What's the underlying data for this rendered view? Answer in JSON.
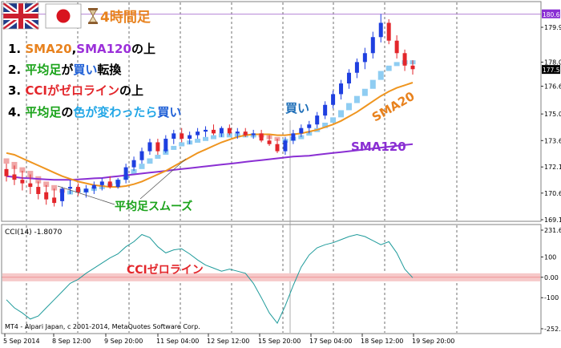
{
  "title": "4時間足",
  "flags": [
    "uk-flag-icon",
    "japan-flag-icon"
  ],
  "hourglass_icon": "hourglass-icon",
  "rules": [
    {
      "num": "1.",
      "parts": [
        {
          "text": "SMA20",
          "color": "#e8821e"
        },
        {
          "text": ",",
          "color": "#000000"
        },
        {
          "text": "SMA120",
          "color": "#9b30d9"
        },
        {
          "text": "の上",
          "color": "#000000"
        }
      ]
    },
    {
      "num": "2.",
      "parts": [
        {
          "text": "平均足",
          "color": "#1aa31a"
        },
        {
          "text": "が",
          "color": "#000000"
        },
        {
          "text": "買い",
          "color": "#1e5fd6"
        },
        {
          "text": "転換",
          "color": "#000000"
        }
      ]
    },
    {
      "num": "3.",
      "parts": [
        {
          "text": "CCIがゼロライン",
          "color": "#e3262b"
        },
        {
          "text": "の上",
          "color": "#000000"
        }
      ]
    },
    {
      "num": "4.",
      "parts": [
        {
          "text": "平均足",
          "color": "#1aa31a"
        },
        {
          "text": "の",
          "color": "#000000"
        },
        {
          "text": "色が変わったら",
          "color": "#21a6e6"
        },
        {
          "text": "買い",
          "color": "#1e5fd6"
        }
      ]
    }
  ],
  "annotations": {
    "buy": "買い",
    "sma20": "SMA20",
    "sma120": "SMA120",
    "smooth": "平均足スムーズ",
    "cci_zero": "CCIゼロライン"
  },
  "copyright": "MT4 - Alpari Japan, c 2001-2014, MetaQuotes Software Corp.",
  "cci_label": "CCI(14) -1.8070",
  "colors": {
    "bull": "#1e3fe0",
    "bear": "#e3262b",
    "ha_bull": "#8fcdf2",
    "ha_bear": "#f0a6a6",
    "sma20": "#ef951f",
    "sma120": "#8a2fd3",
    "cci": "#1f9b9b",
    "zero_band": "#f6c9c9",
    "high_line": "#9b59c8"
  },
  "chart_data": [
    {
      "type": "candlestick",
      "name": "price",
      "x_labels": [
        "5 Sep 2014",
        "8 Sep 12:00",
        "9 Sep 20:00",
        "11 Sep 04:00",
        "12 Sep 12:00",
        "15 Sep 20:00",
        "17 Sep 04:00",
        "18 Sep 12:00",
        "19 Sep 20:00"
      ],
      "ylim": [
        169.16,
        181.3
      ],
      "y_ticks": [
        179.95,
        178.0,
        176.65,
        175.09,
        173.6,
        172.12,
        170.65,
        169.16
      ],
      "current_price": "177.563",
      "high_price": "180.681",
      "ohlc": [
        [
          172.0,
          172.3,
          171.3,
          171.6
        ],
        [
          171.7,
          172.2,
          171.1,
          171.4
        ],
        [
          171.4,
          171.9,
          170.8,
          171.2
        ],
        [
          171.2,
          171.7,
          170.6,
          171.0
        ],
        [
          171.0,
          171.3,
          170.3,
          170.6
        ],
        [
          170.7,
          171.1,
          170.0,
          170.3
        ],
        [
          170.4,
          170.9,
          169.9,
          170.1
        ],
        [
          170.2,
          171.0,
          169.9,
          170.9
        ],
        [
          170.9,
          171.4,
          170.6,
          171.0
        ],
        [
          171.0,
          171.2,
          170.5,
          170.7
        ],
        [
          170.7,
          171.1,
          170.4,
          170.9
        ],
        [
          170.9,
          171.3,
          170.6,
          171.1
        ],
        [
          171.1,
          171.5,
          170.8,
          171.3
        ],
        [
          171.3,
          171.6,
          170.9,
          171.0
        ],
        [
          171.0,
          171.5,
          170.9,
          171.4
        ],
        [
          171.4,
          172.3,
          171.2,
          172.1
        ],
        [
          172.1,
          172.7,
          171.9,
          172.5
        ],
        [
          172.5,
          173.2,
          172.3,
          173.0
        ],
        [
          173.0,
          173.7,
          172.8,
          173.5
        ],
        [
          173.5,
          173.7,
          172.8,
          173.0
        ],
        [
          173.0,
          173.9,
          172.9,
          173.7
        ],
        [
          173.7,
          174.2,
          173.4,
          174.0
        ],
        [
          174.0,
          174.3,
          173.5,
          173.7
        ],
        [
          173.7,
          174.1,
          173.4,
          173.9
        ],
        [
          173.9,
          174.3,
          173.7,
          174.1
        ],
        [
          174.1,
          174.4,
          173.8,
          174.2
        ],
        [
          174.2,
          174.5,
          173.9,
          174.0
        ],
        [
          174.0,
          174.4,
          173.8,
          174.3
        ],
        [
          174.3,
          174.5,
          173.9,
          174.0
        ],
        [
          174.0,
          174.3,
          173.7,
          174.1
        ],
        [
          174.1,
          174.3,
          173.8,
          173.9
        ],
        [
          173.9,
          174.2,
          173.7,
          174.0
        ],
        [
          174.0,
          174.2,
          173.5,
          173.6
        ],
        [
          173.6,
          173.9,
          173.3,
          173.4
        ],
        [
          173.4,
          173.7,
          172.9,
          173.0
        ],
        [
          173.0,
          173.8,
          172.8,
          173.6
        ],
        [
          173.6,
          174.2,
          173.4,
          174.0
        ],
        [
          174.0,
          174.5,
          173.8,
          174.3
        ],
        [
          174.3,
          174.7,
          174.0,
          174.5
        ],
        [
          174.5,
          175.2,
          174.3,
          175.0
        ],
        [
          175.0,
          175.8,
          174.8,
          175.6
        ],
        [
          175.6,
          176.4,
          175.4,
          176.2
        ],
        [
          176.2,
          177.0,
          175.9,
          176.8
        ],
        [
          176.8,
          177.6,
          176.5,
          177.4
        ],
        [
          177.4,
          178.2,
          177.1,
          178.0
        ],
        [
          178.0,
          178.8,
          177.6,
          178.5
        ],
        [
          178.5,
          179.7,
          178.2,
          179.4
        ],
        [
          179.4,
          180.7,
          179.1,
          180.2
        ],
        [
          180.2,
          180.4,
          179.0,
          179.2
        ],
        [
          179.2,
          179.5,
          178.2,
          178.5
        ],
        [
          178.5,
          178.7,
          177.5,
          177.8
        ],
        [
          177.8,
          178.1,
          177.3,
          177.6
        ]
      ],
      "heiken_ashi_smoothed": [
        [
          172.6,
          172.3
        ],
        [
          172.4,
          172.0
        ],
        [
          172.1,
          171.8
        ],
        [
          171.9,
          171.5
        ],
        [
          171.6,
          171.2
        ],
        [
          171.3,
          171.0
        ],
        [
          171.1,
          170.8
        ],
        [
          170.9,
          170.7
        ],
        [
          170.8,
          170.8
        ],
        [
          170.8,
          170.9
        ],
        [
          170.9,
          170.9
        ],
        [
          170.9,
          171.0
        ],
        [
          171.0,
          171.1
        ],
        [
          171.1,
          171.2
        ],
        [
          171.2,
          171.4
        ],
        [
          171.4,
          171.7
        ],
        [
          171.7,
          172.0
        ],
        [
          172.0,
          172.3
        ],
        [
          172.3,
          172.6
        ],
        [
          172.6,
          172.8
        ],
        [
          172.8,
          173.1
        ],
        [
          173.1,
          173.3
        ],
        [
          173.3,
          173.5
        ],
        [
          173.5,
          173.6
        ],
        [
          173.6,
          173.7
        ],
        [
          173.7,
          173.8
        ],
        [
          173.8,
          173.9
        ],
        [
          173.9,
          174.0
        ],
        [
          174.0,
          174.0
        ],
        [
          174.0,
          174.0
        ],
        [
          174.0,
          174.0
        ],
        [
          174.0,
          174.0
        ],
        [
          174.0,
          173.9
        ],
        [
          173.9,
          173.8
        ],
        [
          173.8,
          173.7
        ],
        [
          173.7,
          173.7
        ],
        [
          173.7,
          173.8
        ],
        [
          173.8,
          173.9
        ],
        [
          173.9,
          174.1
        ],
        [
          174.1,
          174.3
        ],
        [
          174.3,
          174.6
        ],
        [
          174.6,
          174.9
        ],
        [
          174.9,
          175.3
        ],
        [
          175.3,
          175.7
        ],
        [
          175.7,
          176.1
        ],
        [
          176.1,
          176.5
        ],
        [
          176.5,
          177.0
        ],
        [
          177.0,
          177.5
        ],
        [
          177.5,
          177.8
        ],
        [
          177.8,
          178.0
        ],
        [
          178.0,
          178.1
        ],
        [
          178.1,
          178.1
        ]
      ],
      "sma20": [
        172.9,
        172.8,
        172.6,
        172.4,
        172.2,
        172.0,
        171.8,
        171.6,
        171.45,
        171.3,
        171.2,
        171.1,
        171.05,
        171.0,
        171.0,
        171.05,
        171.15,
        171.3,
        171.5,
        171.7,
        171.9,
        172.15,
        172.4,
        172.65,
        172.9,
        173.1,
        173.3,
        173.5,
        173.65,
        173.8,
        173.9,
        173.95,
        173.95,
        173.95,
        173.9,
        173.9,
        173.95,
        174.0,
        174.1,
        174.2,
        174.35,
        174.5,
        174.7,
        174.95,
        175.2,
        175.5,
        175.8,
        176.1,
        176.35,
        176.55,
        176.7,
        176.85
      ],
      "sma120": [
        171.6,
        171.55,
        171.5,
        171.48,
        171.45,
        171.42,
        171.4,
        171.4,
        171.4,
        171.42,
        171.45,
        171.48,
        171.5,
        171.55,
        171.6,
        171.65,
        171.7,
        171.75,
        171.8,
        171.85,
        171.9,
        171.95,
        172.0,
        172.05,
        172.1,
        172.15,
        172.2,
        172.25,
        172.3,
        172.35,
        172.4,
        172.45,
        172.5,
        172.55,
        172.6,
        172.65,
        172.7,
        172.72,
        172.75,
        172.8,
        172.85,
        172.9,
        172.95,
        173.0,
        173.05,
        173.1,
        173.15,
        173.2,
        173.25,
        173.3,
        173.35,
        173.4
      ]
    },
    {
      "type": "line",
      "name": "CCI(14)",
      "ylim": [
        -252.7181,
        231.6974
      ],
      "y_ticks": [
        231.6974,
        100,
        0.0,
        -100,
        -252.7181
      ],
      "values": [
        -110,
        -150,
        -175,
        -205,
        -190,
        -150,
        -110,
        -70,
        -30,
        -10,
        20,
        45,
        70,
        95,
        115,
        150,
        175,
        210,
        195,
        150,
        120,
        135,
        140,
        115,
        85,
        60,
        45,
        30,
        40,
        30,
        20,
        -30,
        -100,
        -175,
        -225,
        -140,
        -40,
        50,
        110,
        145,
        160,
        170,
        185,
        200,
        210,
        200,
        180,
        160,
        175,
        120,
        40,
        -2
      ]
    }
  ]
}
